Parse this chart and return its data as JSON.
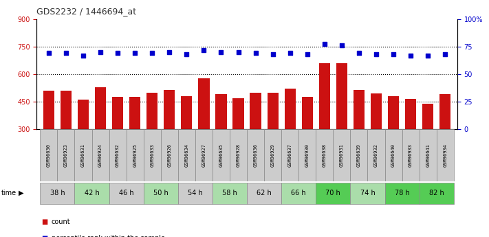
{
  "title": "GDS2232 / 1446694_at",
  "samples": [
    "GSM96630",
    "GSM96923",
    "GSM96631",
    "GSM96924",
    "GSM96632",
    "GSM96925",
    "GSM96633",
    "GSM96926",
    "GSM96634",
    "GSM96927",
    "GSM96635",
    "GSM96928",
    "GSM96636",
    "GSM96929",
    "GSM96637",
    "GSM96930",
    "GSM96638",
    "GSM96931",
    "GSM96639",
    "GSM96932",
    "GSM96640",
    "GSM96933",
    "GSM96641",
    "GSM96934"
  ],
  "count_values": [
    510,
    510,
    460,
    530,
    475,
    475,
    500,
    515,
    480,
    575,
    490,
    470,
    500,
    500,
    520,
    475,
    660,
    660,
    515,
    495,
    480,
    465,
    440,
    490
  ],
  "percentile_values": [
    69,
    69,
    67,
    70,
    69,
    69,
    69,
    70,
    68,
    72,
    70,
    70,
    69,
    68,
    69,
    68,
    77,
    76,
    69,
    68,
    68,
    67,
    67,
    68
  ],
  "time_groups": [
    {
      "label": "38 h",
      "cols": [
        0,
        1
      ],
      "color": "#cccccc"
    },
    {
      "label": "42 h",
      "cols": [
        2,
        3
      ],
      "color": "#aaddaa"
    },
    {
      "label": "46 h",
      "cols": [
        4,
        5
      ],
      "color": "#cccccc"
    },
    {
      "label": "50 h",
      "cols": [
        6,
        7
      ],
      "color": "#aaddaa"
    },
    {
      "label": "54 h",
      "cols": [
        8,
        9
      ],
      "color": "#cccccc"
    },
    {
      "label": "58 h",
      "cols": [
        10,
        11
      ],
      "color": "#aaddaa"
    },
    {
      "label": "62 h",
      "cols": [
        12,
        13
      ],
      "color": "#cccccc"
    },
    {
      "label": "66 h",
      "cols": [
        14,
        15
      ],
      "color": "#aaddaa"
    },
    {
      "label": "70 h",
      "cols": [
        16,
        17
      ],
      "color": "#55cc55"
    },
    {
      "label": "74 h",
      "cols": [
        18,
        19
      ],
      "color": "#aaddaa"
    },
    {
      "label": "78 h",
      "cols": [
        20,
        21
      ],
      "color": "#55cc55"
    },
    {
      "label": "82 h",
      "cols": [
        22,
        23
      ],
      "color": "#55cc55"
    }
  ],
  "sample_bg_color": "#cccccc",
  "ylim_left": [
    300,
    900
  ],
  "ylim_right": [
    0,
    100
  ],
  "yticks_left": [
    300,
    450,
    600,
    750,
    900
  ],
  "yticks_right": [
    0,
    25,
    50,
    75,
    100
  ],
  "bar_color": "#cc1111",
  "dot_color": "#0000cc",
  "bg_color": "#ffffff",
  "plot_bg": "#ffffff",
  "left_tick_color": "#cc1111",
  "right_tick_color": "#0000cc",
  "hlines": [
    450,
    600,
    750
  ]
}
